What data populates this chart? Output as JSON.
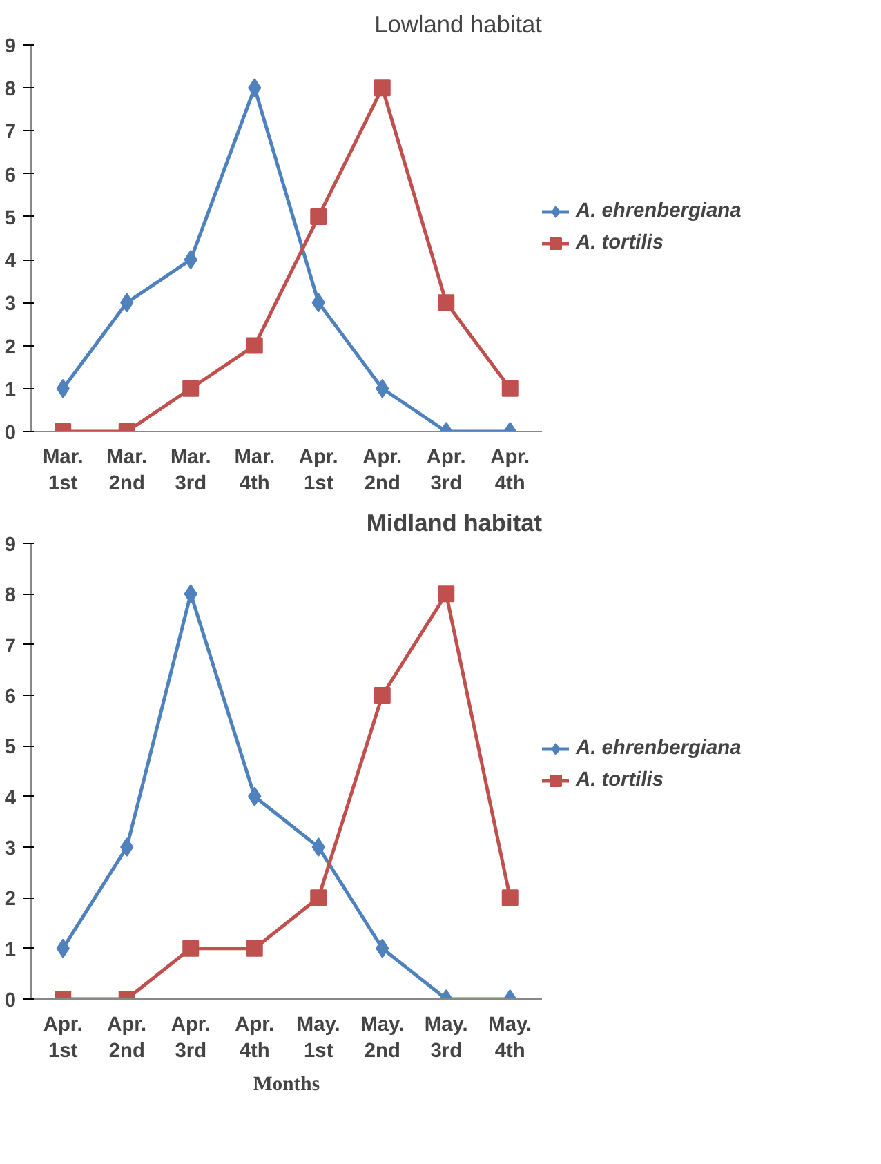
{
  "chart_data": [
    {
      "type": "line",
      "title": "Lowland habitat",
      "categories": [
        "Mar.\n1st",
        "Mar.\n2nd",
        "Mar.\n3rd",
        "Mar.\n4th",
        "Apr.\n1st",
        "Apr.\n2nd",
        "Apr.\n3rd",
        "Apr.\n4th"
      ],
      "ylim": [
        0,
        9
      ],
      "yticks": [
        0,
        1,
        2,
        3,
        4,
        5,
        6,
        7,
        8,
        9
      ],
      "grid": false,
      "legend": "right",
      "series": [
        {
          "name": "A. ehrenbergiana",
          "color": "#4f81bd",
          "marker": "diamond",
          "values": [
            1,
            3,
            4,
            8,
            3,
            1,
            0,
            0
          ]
        },
        {
          "name": "A. tortilis",
          "color": "#c0504d",
          "marker": "square",
          "values": [
            0,
            0,
            1,
            2,
            5,
            8,
            3,
            1
          ]
        }
      ]
    },
    {
      "type": "line",
      "title": "Midland habitat",
      "xlabel": "Months",
      "categories": [
        "Apr.\n1st",
        "Apr.\n2nd",
        "Apr.\n3rd",
        "Apr.\n4th",
        "May.\n1st",
        "May.\n2nd",
        "May.\n3rd",
        "May.\n4th"
      ],
      "ylim": [
        0,
        9
      ],
      "yticks": [
        0,
        1,
        2,
        3,
        4,
        5,
        6,
        7,
        8,
        9
      ],
      "grid": false,
      "legend": "right",
      "series": [
        {
          "name": "A. ehrenbergiana",
          "color": "#4f81bd",
          "marker": "diamond",
          "values": [
            1,
            3,
            8,
            4,
            3,
            1,
            0,
            0
          ]
        },
        {
          "name": "A. tortilis",
          "color": "#c0504d",
          "marker": "square",
          "values": [
            0,
            0,
            1,
            1,
            2,
            6,
            8,
            2
          ]
        }
      ]
    }
  ]
}
